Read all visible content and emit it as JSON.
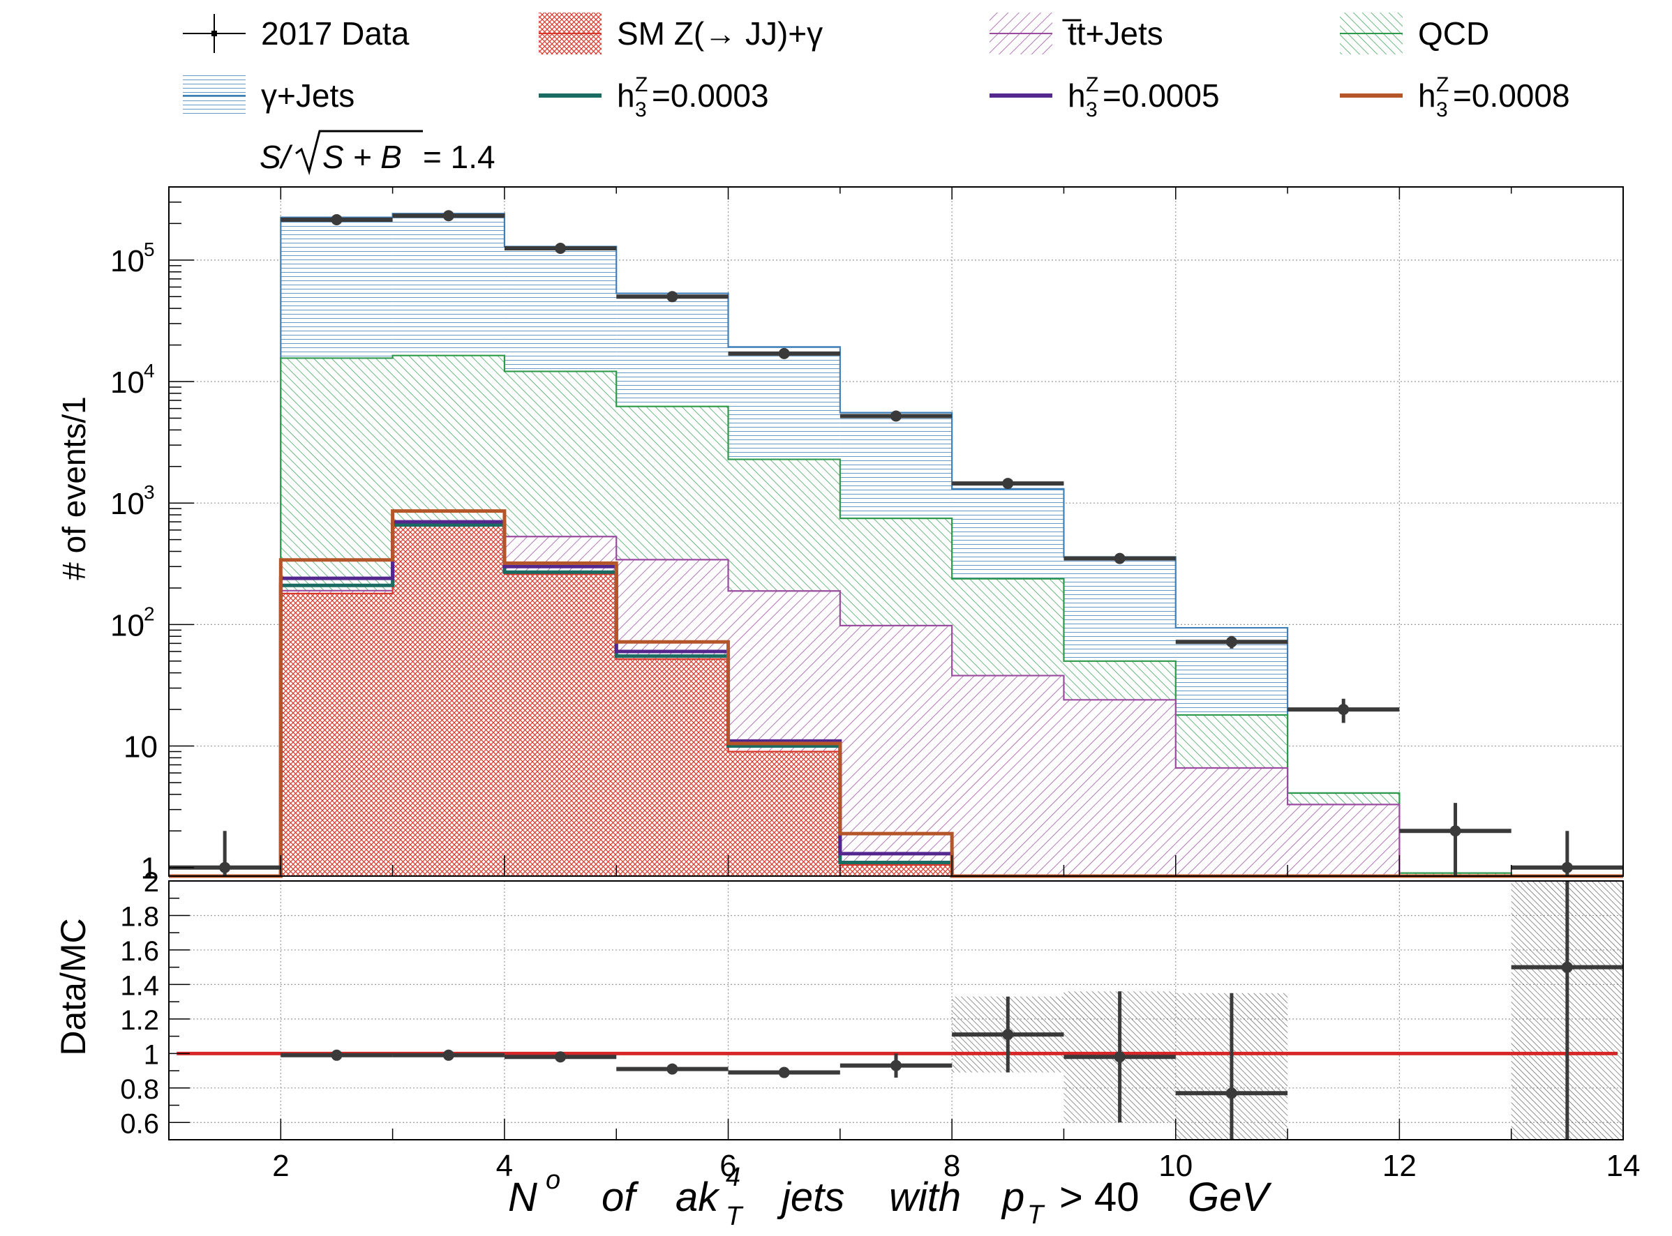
{
  "significance": {
    "prefix": "S/",
    "radicand": "S + B",
    "suffix": " = 1.4"
  },
  "legend": [
    {
      "key": "data",
      "label": "2017 Data",
      "style": "marker",
      "color": "#000000"
    },
    {
      "key": "smzg",
      "label": "SM Z(→ JJ)+γ",
      "style": "hatch",
      "color": "#d9392c"
    },
    {
      "key": "ttjets",
      "label": "t̅t+Jets",
      "style": "hatch",
      "color": "#9a4ba0"
    },
    {
      "key": "qcd",
      "label": "QCD",
      "style": "hatch",
      "color": "#2c9a4a"
    },
    {
      "key": "gjets",
      "label": "γ+Jets",
      "style": "hatch",
      "color": "#3f7fb8"
    },
    {
      "key": "h1",
      "label_base": "h",
      "label_sup": "Z",
      "label_sub": "3",
      "label_rest": "=0.0003",
      "style": "line",
      "color": "#1a6b62"
    },
    {
      "key": "h2",
      "label_base": "h",
      "label_sup": "Z",
      "label_sub": "3",
      "label_rest": "=0.0005",
      "style": "line",
      "color": "#54278f"
    },
    {
      "key": "h3",
      "label_base": "h",
      "label_sup": "Z",
      "label_sub": "3",
      "label_rest": "=0.0008",
      "style": "line",
      "color": "#b5562a"
    }
  ],
  "chart_data": [
    {
      "type": "bar",
      "subtype": "stacked-histogram-log",
      "ylabel": "# of events/1",
      "yscale": "log",
      "ylim": [
        0.85,
        400000
      ],
      "xlim": [
        1,
        14
      ],
      "bin_edges": [
        1,
        2,
        3,
        4,
        5,
        6,
        7,
        8,
        9,
        10,
        11,
        12,
        13,
        14
      ],
      "ytick_labels": [
        {
          "value": 1,
          "base": "1",
          "exp": ""
        },
        {
          "value": 10,
          "base": "10",
          "exp": ""
        },
        {
          "value": 100,
          "base": "10",
          "exp": "2"
        },
        {
          "value": 1000,
          "base": "10",
          "exp": "3"
        },
        {
          "value": 10000,
          "base": "10",
          "exp": "4"
        },
        {
          "value": 100000,
          "base": "10",
          "exp": "5"
        }
      ],
      "stack": [
        {
          "key": "smzg",
          "values": [
            0,
            180,
            650,
            260,
            52,
            9,
            1.05,
            0,
            0,
            0,
            0,
            0,
            0
          ]
        },
        {
          "key": "ttjets",
          "values": [
            0,
            10,
            30,
            270,
            290,
            180,
            97,
            38,
            24,
            6.6,
            3.3,
            0,
            0
          ]
        },
        {
          "key": "qcd",
          "values": [
            0,
            15400,
            15700,
            11600,
            5900,
            2100,
            650,
            200,
            26,
            11.4,
            0.8,
            0.9,
            0
          ]
        },
        {
          "key": "gjets",
          "values": [
            0,
            209000,
            225000,
            117000,
            47000,
            17000,
            4800,
            1070,
            310,
            76,
            0,
            0,
            0
          ]
        }
      ],
      "signals": [
        {
          "key": "h1",
          "values": [
            0,
            210,
            660,
            270,
            55,
            10,
            1.1,
            0,
            0,
            0,
            0,
            0,
            0
          ]
        },
        {
          "key": "h2",
          "values": [
            0,
            240,
            700,
            300,
            60,
            11,
            1.3,
            0,
            0,
            0,
            0,
            0,
            0
          ]
        },
        {
          "key": "h3",
          "values": [
            0,
            340,
            860,
            320,
            72,
            10.5,
            1.9,
            0,
            0,
            0,
            0,
            0,
            0
          ]
        }
      ],
      "data_points": [
        {
          "x": 1.5,
          "y": 1,
          "err": 1
        },
        {
          "x": 2.5,
          "y": 215000,
          "err": 460
        },
        {
          "x": 3.5,
          "y": 232000,
          "err": 480
        },
        {
          "x": 4.5,
          "y": 125000,
          "err": 350
        },
        {
          "x": 5.5,
          "y": 50000,
          "err": 220
        },
        {
          "x": 6.5,
          "y": 17000,
          "err": 130
        },
        {
          "x": 7.5,
          "y": 5200,
          "err": 72
        },
        {
          "x": 8.5,
          "y": 1450,
          "err": 38
        },
        {
          "x": 9.5,
          "y": 350,
          "err": 19
        },
        {
          "x": 10.5,
          "y": 72,
          "err": 8.5
        },
        {
          "x": 11.5,
          "y": 20,
          "err": 4.5
        },
        {
          "x": 12.5,
          "y": 2,
          "err": 1.4
        },
        {
          "x": 13.5,
          "y": 1,
          "err": 1
        }
      ],
      "grid": true
    },
    {
      "type": "scatter",
      "subtype": "ratio",
      "ylabel": "Data/MC",
      "ylim": [
        0.5,
        2.0
      ],
      "xlim": [
        1,
        14
      ],
      "reference_line": 1,
      "ytick_labels": [
        "0.6",
        "0.8",
        "1",
        "1.2",
        "1.4",
        "1.6",
        "1.8",
        "2"
      ],
      "xtick_labels": [
        "2",
        "4",
        "6",
        "8",
        "10",
        "12",
        "14"
      ],
      "xlabel": {
        "N": "N",
        "o": "o",
        "of": "of",
        "ak": "ak",
        "ak_sup": "4",
        "ak_sub": "T",
        "jets": "jets",
        "with": "with",
        "p": "p",
        "p_sub": "T",
        "cut": "> 40",
        "unit": "GeV"
      },
      "points": [
        {
          "x": 2.5,
          "y": 0.99,
          "err": 0.005
        },
        {
          "x": 3.5,
          "y": 0.99,
          "err": 0.005
        },
        {
          "x": 4.5,
          "y": 0.98,
          "err": 0.006
        },
        {
          "x": 5.5,
          "y": 0.91,
          "err": 0.008
        },
        {
          "x": 6.5,
          "y": 0.89,
          "err": 0.012
        },
        {
          "x": 7.5,
          "y": 0.93,
          "err": 0.07
        },
        {
          "x": 8.5,
          "y": 1.11,
          "err": 0.22
        },
        {
          "x": 9.5,
          "y": 0.98,
          "err": 0.38
        },
        {
          "x": 10.5,
          "y": 0.77,
          "err": 0.58
        },
        {
          "x": 13.5,
          "y": 1.5,
          "err": 1.0
        }
      ],
      "uncertainty_bands": [
        {
          "x0": 8,
          "x1": 9,
          "lo": 0.89,
          "hi": 1.33
        },
        {
          "x0": 9,
          "x1": 10,
          "lo": 0.6,
          "hi": 1.36
        },
        {
          "x0": 10,
          "x1": 11,
          "lo": 0.5,
          "hi": 1.35
        },
        {
          "x0": 13,
          "x1": 14,
          "lo": 0.5,
          "hi": 2.0
        }
      ],
      "grid": true
    }
  ]
}
